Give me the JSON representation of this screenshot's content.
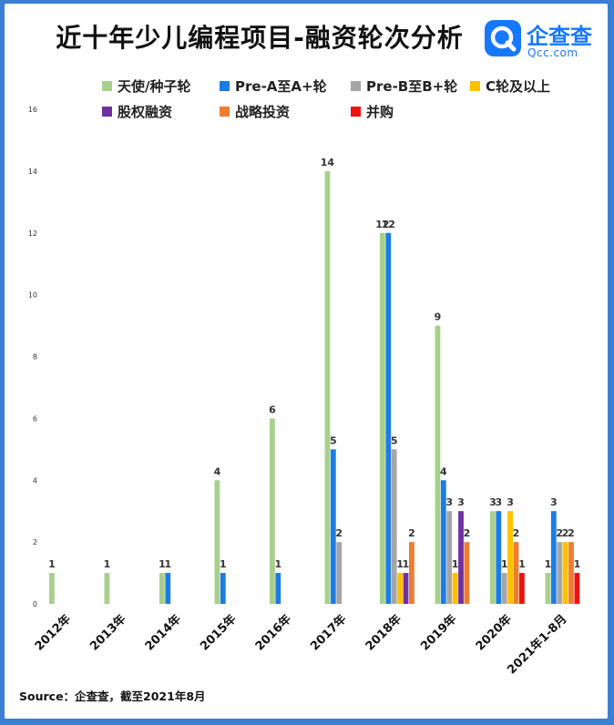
{
  "title": "近十年少儿编程项目-融资轮次分析",
  "logo": {
    "name": "企查查",
    "domain": "Qcc.com",
    "icon": "qcc-logo-icon"
  },
  "source": "Source：企查查，截至2021年8月",
  "colors": {
    "background": "#3b7fd2",
    "seed": "#a8d08d",
    "preA": "#1c7ce5",
    "preB": "#a6a6a6",
    "c": "#ffc000",
    "equity": "#7030a0",
    "strategic": "#ed7d31",
    "ma": "#ee1111"
  },
  "chart_data": {
    "type": "bar",
    "title": "近十年少儿编程项目-融资轮次分析",
    "xlabel": "",
    "ylabel": "",
    "ylim": [
      0,
      16
    ],
    "yticks": [
      0,
      2,
      4,
      6,
      8,
      10,
      12,
      14,
      16
    ],
    "grid": false,
    "legend_position": "top",
    "categories": [
      "2012年",
      "2013年",
      "2014年",
      "2015年",
      "2016年",
      "2017年",
      "2018年",
      "2019年",
      "2020年",
      "2021年1-8月"
    ],
    "series": [
      {
        "name": "天使/种子轮",
        "color": "#a8d08d",
        "values": [
          1,
          1,
          1,
          4,
          6,
          14,
          12,
          9,
          3,
          1
        ]
      },
      {
        "name": "Pre-A至A+轮",
        "color": "#1c7ce5",
        "values": [
          null,
          null,
          1,
          1,
          1,
          5,
          12,
          4,
          3,
          3
        ]
      },
      {
        "name": "Pre-B至B+轮",
        "color": "#a6a6a6",
        "values": [
          null,
          null,
          null,
          null,
          null,
          2,
          5,
          3,
          1,
          2
        ]
      },
      {
        "name": "C轮及以上",
        "color": "#ffc000",
        "values": [
          null,
          null,
          null,
          null,
          null,
          null,
          1,
          1,
          3,
          2
        ]
      },
      {
        "name": "股权融资",
        "color": "#7030a0",
        "values": [
          null,
          null,
          null,
          null,
          null,
          null,
          1,
          3,
          null,
          null
        ]
      },
      {
        "name": "战略投资",
        "color": "#ed7d31",
        "values": [
          null,
          null,
          null,
          null,
          null,
          null,
          2,
          2,
          2,
          2
        ]
      },
      {
        "name": "并购",
        "color": "#ee1111",
        "values": [
          null,
          null,
          null,
          null,
          null,
          null,
          null,
          null,
          1,
          1
        ]
      }
    ]
  }
}
